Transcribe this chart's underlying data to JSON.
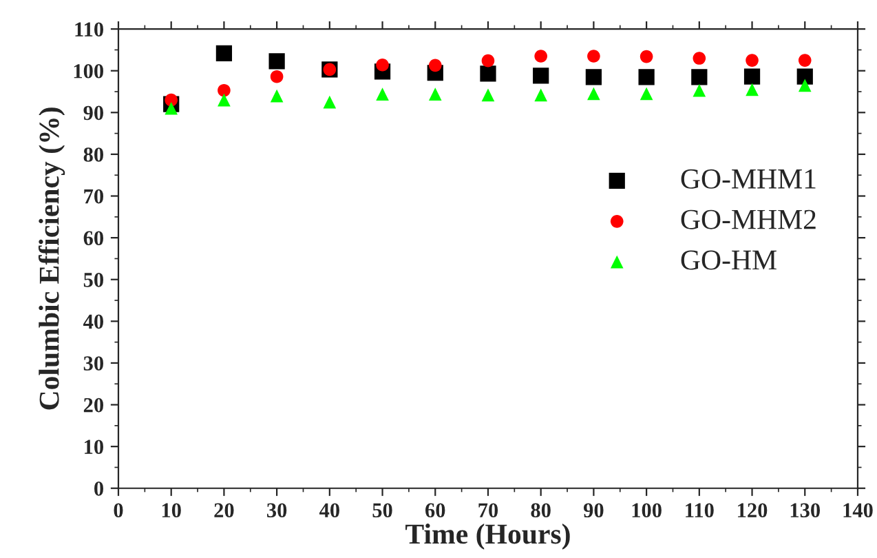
{
  "chart_data": {
    "type": "scatter",
    "xlabel": "Time (Hours)",
    "ylabel": "Columbic Efficiency (%)",
    "x": [
      10,
      20,
      30,
      40,
      50,
      60,
      70,
      80,
      90,
      100,
      110,
      120,
      130
    ],
    "series": [
      {
        "name": "GO-MHM1",
        "color": "#000000",
        "marker": "square",
        "values": [
          92,
          104.2,
          102.3,
          100.3,
          99.8,
          99.5,
          99.3,
          98.8,
          98.5,
          98.5,
          98.5,
          98.6,
          98.6
        ]
      },
      {
        "name": "GO-MHM2",
        "color": "#ff0000",
        "marker": "circle",
        "values": [
          93,
          95.3,
          98.6,
          100.3,
          101.4,
          101.3,
          102.4,
          103.5,
          103.5,
          103.4,
          103,
          102.5,
          102.5
        ]
      },
      {
        "name": "GO-HM",
        "color": "#00ff00",
        "marker": "triangle",
        "values": [
          91,
          93,
          94,
          92.5,
          94.4,
          94.4,
          94.2,
          94.2,
          94.5,
          94.5,
          95.3,
          95.5,
          96.5
        ]
      }
    ],
    "xlim": [
      0,
      140
    ],
    "xticks": [
      0,
      10,
      20,
      30,
      40,
      50,
      60,
      70,
      80,
      90,
      100,
      110,
      120,
      130,
      140
    ],
    "ylim": [
      0,
      110
    ],
    "yticks": [
      0,
      10,
      20,
      30,
      40,
      50,
      60,
      70,
      80,
      90,
      100,
      110
    ],
    "grid": false,
    "legend": "right"
  }
}
